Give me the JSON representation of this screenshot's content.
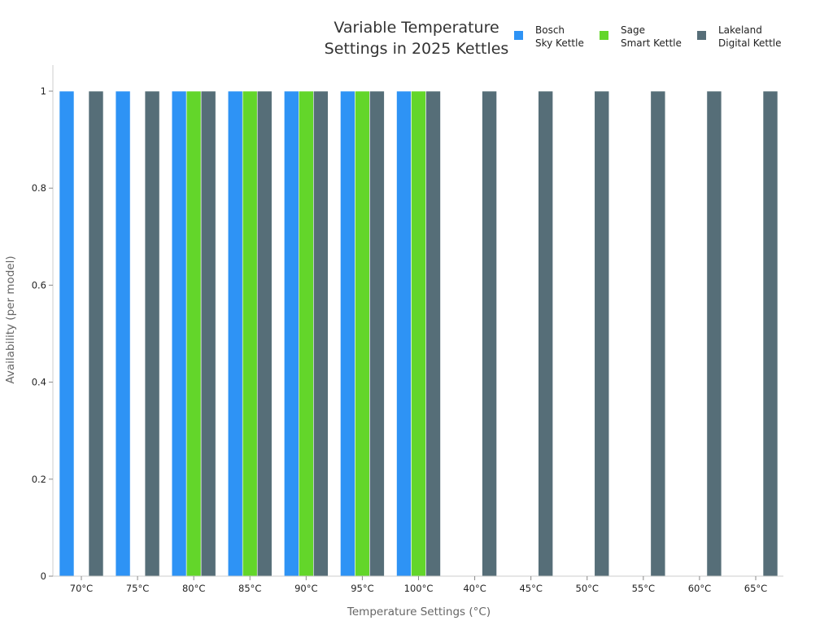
{
  "chart_data": {
    "type": "bar",
    "title": [
      "Variable Temperature",
      "Settings in 2025 Kettles"
    ],
    "xlabel": "Temperature Settings (°C)",
    "ylabel": "Availability (per model)",
    "ylim": [
      0,
      1.05
    ],
    "yticks": [
      "0",
      "0.2",
      "0.4",
      "0.6",
      "0.8",
      "1"
    ],
    "grid": false,
    "legend_position": "top-right",
    "categories": [
      "70°C",
      "75°C",
      "80°C",
      "85°C",
      "90°C",
      "95°C",
      "100°C",
      "40°C",
      "45°C",
      "50°C",
      "55°C",
      "60°C",
      "65°C"
    ],
    "series": [
      {
        "name": [
          "Bosch",
          "Sky Kettle"
        ],
        "color": "#2e93f5",
        "values": [
          1,
          1,
          1,
          1,
          1,
          1,
          1,
          0,
          0,
          0,
          0,
          0,
          0
        ]
      },
      {
        "name": [
          "Sage",
          "Smart Kettle"
        ],
        "color": "#63d62a",
        "values": [
          0,
          0,
          1,
          1,
          1,
          1,
          1,
          0,
          0,
          0,
          0,
          0,
          0
        ]
      },
      {
        "name": [
          "Lakeland",
          "Digital Kettle"
        ],
        "color": "#566e78",
        "values": [
          1,
          1,
          1,
          1,
          1,
          1,
          1,
          1,
          1,
          1,
          1,
          1,
          1
        ]
      }
    ]
  }
}
